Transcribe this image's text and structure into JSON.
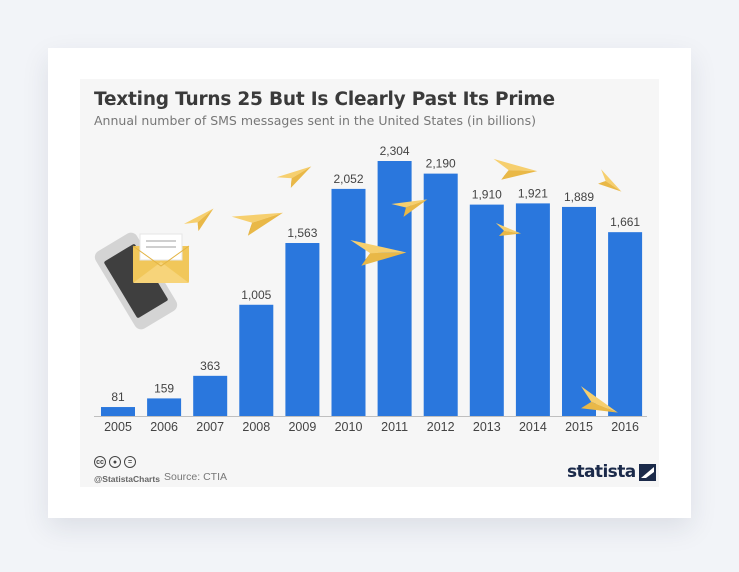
{
  "chart_data": {
    "type": "bar",
    "title": "Texting Turns 25 But Is Clearly Past Its Prime",
    "subtitle": "Annual number of SMS messages sent in the United States (in billions)",
    "categories": [
      "2005",
      "2006",
      "2007",
      "2008",
      "2009",
      "2010",
      "2011",
      "2012",
      "2013",
      "2014",
      "2015",
      "2016"
    ],
    "values": [
      81,
      159,
      363,
      1005,
      1563,
      2052,
      2304,
      2190,
      1910,
      1921,
      1889,
      1661
    ],
    "value_labels": [
      "81",
      "159",
      "363",
      "1,005",
      "1,563",
      "2,052",
      "2,304",
      "2,190",
      "1,910",
      "1,921",
      "1,889",
      "1,661"
    ],
    "ylim": [
      0,
      2304
    ],
    "grid": false,
    "bar_color": "#2a77dd"
  },
  "footer": {
    "license_icons": [
      "cc-icon",
      "attribution-icon",
      "equals-icon"
    ],
    "handle": "@StatistaCharts",
    "source": "Source: CTIA",
    "brand": "statista"
  },
  "decoration": {
    "icons": [
      "mobile-phone-icon",
      "envelope-icon",
      "paper-plane-icon"
    ],
    "plane_color": "#f6cf6e"
  }
}
